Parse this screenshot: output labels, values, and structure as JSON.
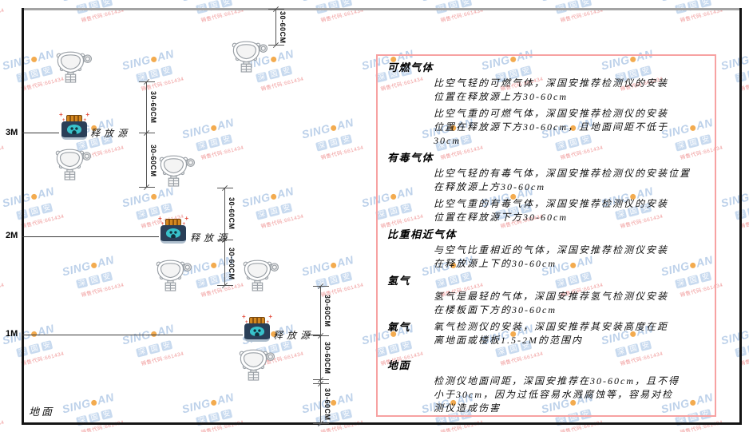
{
  "watermark": {
    "brand_prefix": "SING",
    "brand_suffix": "AN",
    "company_cn": "深国安",
    "sales_code": "销售代码:661434"
  },
  "diagram": {
    "height_labels": {
      "h3": "3M",
      "h2": "2M",
      "h1": "1M"
    },
    "ground_label": "地面",
    "release_source_label": "释放源",
    "dimension_label": "30-60CM"
  },
  "panel": {
    "sections": [
      {
        "heading": "可燃气体",
        "paragraphs": [
          [
            "比空气轻的可燃气体，深国安推荐检测仪的安装",
            "位置在释放源上方30-60cm"
          ],
          [
            "比空气重的可燃气体，深国安推荐检测仪的安装",
            "位置在释放源下方30-60cm，且地面间距不低于",
            "30cm"
          ]
        ]
      },
      {
        "heading": "有毒气体",
        "paragraphs": [
          [
            "比空气轻的有毒气体，深国安推荐检测仪的安装位置",
            "在释放源上方30-60cm"
          ],
          [
            "比空气重的有毒气体，深国安推荐检测仪的安装",
            "位置在释放源下方30-60cm"
          ]
        ]
      },
      {
        "heading": "比重相近气体",
        "paragraphs": [
          [
            "与空气比重相近的气体，深国安推荐检测仪安装",
            "在释放源上下的30-60cm"
          ]
        ]
      },
      {
        "heading": "氢气",
        "paragraphs": [
          [
            "氢气是最轻的气体，深国安推荐氢气检测仪安装",
            "在楼板面下方的30-60cm"
          ]
        ]
      },
      {
        "heading": "氧气",
        "inline_heading": true,
        "paragraphs": [
          [
            "氧气检测仪的安装，深国安推荐其安装高度在距",
            "离地面或楼板1.5-2M的范围内"
          ]
        ]
      },
      {
        "heading": "地面",
        "gap_before": true,
        "paragraphs": [
          [
            "检测仪地面间距，深国安推荐在30-60cm，且不得",
            "小于30cm，因为过低容易水溅腐蚀等，容易对检",
            "测仪造成伤害"
          ]
        ]
      }
    ]
  }
}
